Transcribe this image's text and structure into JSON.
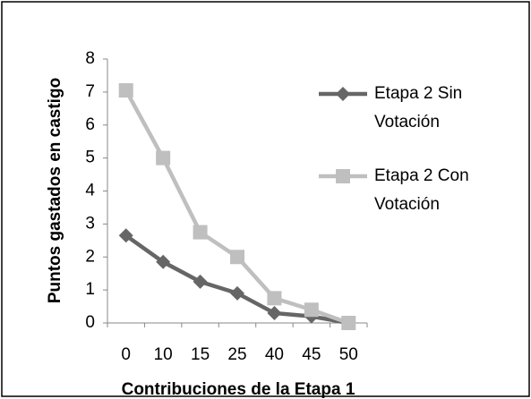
{
  "chart_data": {
    "type": "line",
    "x_label": "Contribuciones de la Etapa 1",
    "y_label": "Puntos gastados en castigo",
    "categories": [
      "0",
      "10",
      "15",
      "25",
      "40",
      "45",
      "50"
    ],
    "series": [
      {
        "name": "Etapa 2 Sin Votación",
        "color": "#666666",
        "marker": "diamond",
        "values": [
          2.65,
          1.85,
          1.25,
          0.9,
          0.3,
          0.2,
          0
        ]
      },
      {
        "name": "Etapa 2 Con Votación",
        "color": "#bfbfbf",
        "marker": "square",
        "values": [
          7.05,
          5,
          2.75,
          2,
          0.75,
          0.4,
          0
        ]
      }
    ],
    "ylim": [
      0,
      8
    ],
    "yticks": [
      0,
      1,
      2,
      3,
      4,
      5,
      6,
      7,
      8
    ],
    "grid": false,
    "legend": "right"
  }
}
